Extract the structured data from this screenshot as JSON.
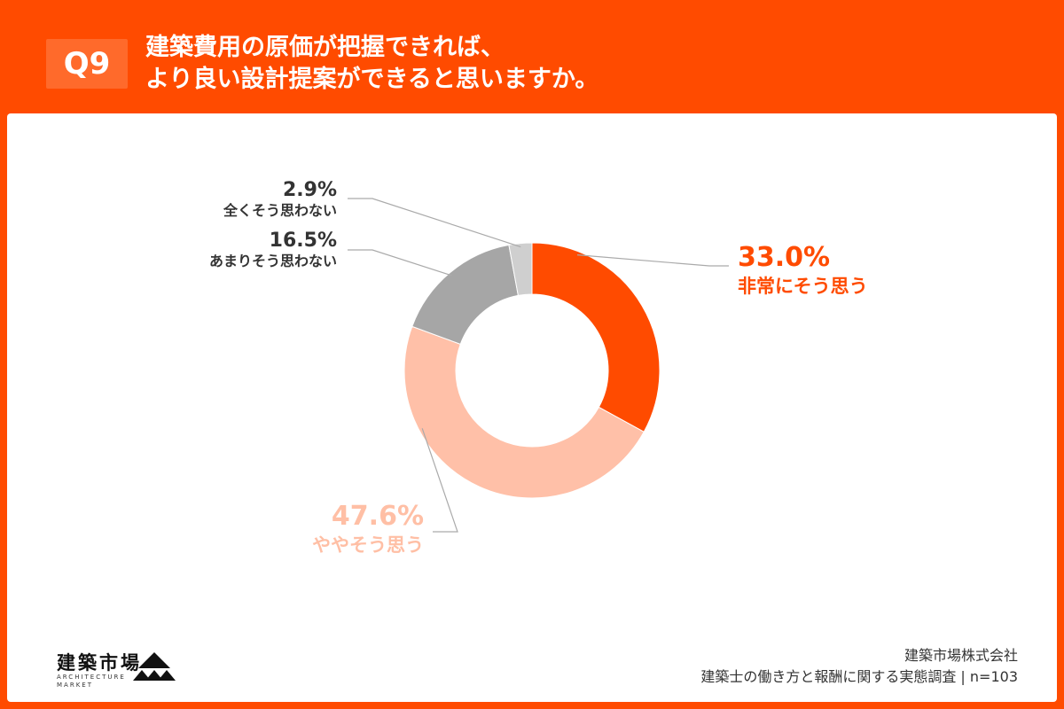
{
  "header": {
    "badge": "Q9",
    "title_line1": "建築費用の原価が把握できれば、",
    "title_line2": "より良い設計提案ができると思いますか。"
  },
  "footer": {
    "brand_name": "建築市場",
    "brand_sub_1": "ARCHITECTURE",
    "brand_sub_2": "MARKET",
    "company": "建築市場株式会社",
    "survey": "建築士の働き方と報酬に関する実態調査 | n=103"
  },
  "colors": {
    "accent": "#ff4b00",
    "light_accent": "#ffc0a8",
    "gray": "#a6a6a6",
    "light_gray": "#cfcfcf"
  },
  "chart_data": {
    "type": "pie",
    "donut": true,
    "title": "",
    "slices": [
      {
        "label": "非常にそう思う",
        "value": 33.0,
        "display": "33.0%",
        "color": "#ff4b00",
        "label_color": "#ff4b00"
      },
      {
        "label": "ややそう思う",
        "value": 47.6,
        "display": "47.6%",
        "color": "#ffc0a8",
        "label_color": "#ffbfa5"
      },
      {
        "label": "あまりそう思わない",
        "value": 16.5,
        "display": "16.5%",
        "color": "#a6a6a6",
        "label_color": "#333333"
      },
      {
        "label": "全くそう思わない",
        "value": 2.9,
        "display": "2.9%",
        "color": "#cfcfcf",
        "label_color": "#333333"
      }
    ]
  }
}
